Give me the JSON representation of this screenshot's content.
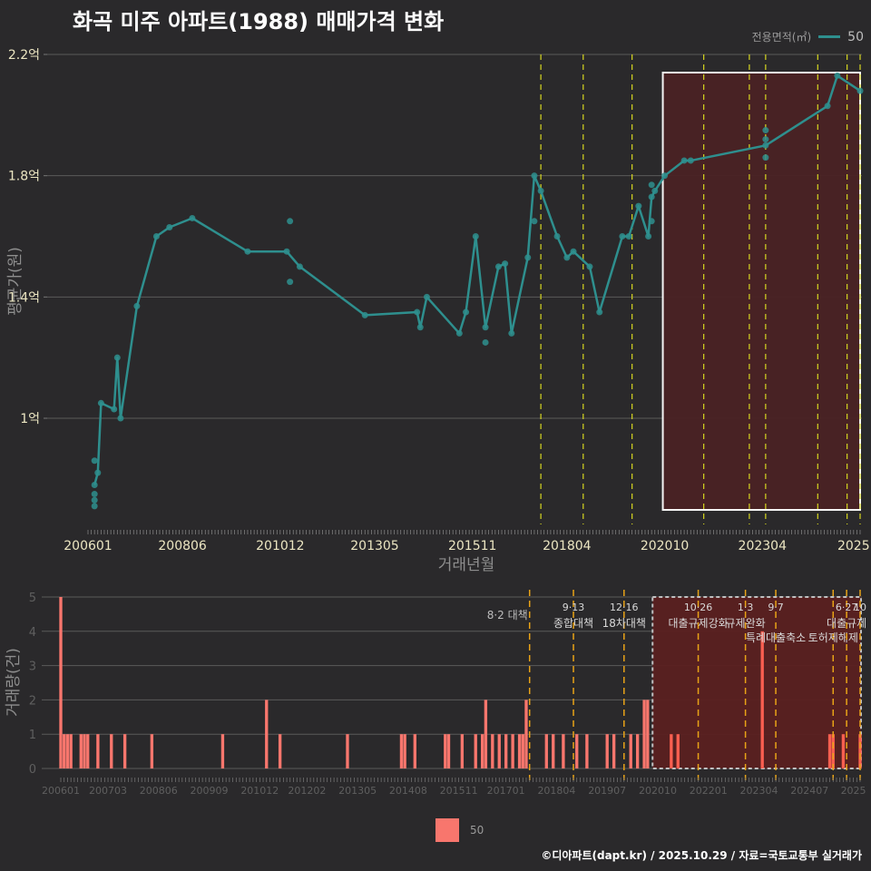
{
  "header": {
    "title": "화곡 미주 아파트(1988) 매매가격 변화"
  },
  "legend_top": {
    "title": "전용면적(㎡)",
    "label": "50",
    "color": "#2e8f8e"
  },
  "legend_bottom": {
    "label": "50",
    "color": "#f8766d"
  },
  "footer": {
    "credit": "©디아파트(dapt.kr) / 2025.10.29 / 자료=국토교통부 실거래가"
  },
  "chart_data": [
    {
      "type": "line",
      "title": "화곡 미주 아파트(1988) 매매가격 변화",
      "xlabel": "거래년월",
      "ylabel": "평균가(원)",
      "y_ticks": [
        "1억",
        "1.4억",
        "1.8억",
        "2.2억"
      ],
      "y_tick_values": [
        1.0,
        1.4,
        1.8,
        2.2
      ],
      "x_ticks": [
        "200601",
        "200806",
        "201012",
        "201305",
        "201511",
        "201804",
        "202010",
        "202304",
        "2025"
      ],
      "ylim": [
        0.7,
        2.2
      ],
      "grid": true,
      "series": [
        {
          "name": "50",
          "unit": "억",
          "points": [
            [
              "2006-03",
              0.78
            ],
            [
              "2006-04",
              0.82
            ],
            [
              "2006-05",
              1.05
            ],
            [
              "2006-09",
              1.03
            ],
            [
              "2006-10",
              1.2
            ],
            [
              "2006-11",
              1.0
            ],
            [
              "2007-04",
              1.37
            ],
            [
              "2007-10",
              1.6
            ],
            [
              "2008-02",
              1.63
            ],
            [
              "2008-09",
              1.66
            ],
            [
              "2010-02",
              1.55
            ],
            [
              "2011-02",
              1.55
            ],
            [
              "2011-06",
              1.5
            ],
            [
              "2013-02",
              1.34
            ],
            [
              "2014-06",
              1.35
            ],
            [
              "2014-07",
              1.3
            ],
            [
              "2014-09",
              1.4
            ],
            [
              "2015-07",
              1.28
            ],
            [
              "2015-09",
              1.35
            ],
            [
              "2015-12",
              1.6
            ],
            [
              "2016-03",
              1.3
            ],
            [
              "2016-07",
              1.5
            ],
            [
              "2016-09",
              1.51
            ],
            [
              "2016-11",
              1.28
            ],
            [
              "2017-04",
              1.53
            ],
            [
              "2017-06",
              1.8
            ],
            [
              "2017-08",
              1.75
            ],
            [
              "2018-01",
              1.6
            ],
            [
              "2018-04",
              1.53
            ],
            [
              "2018-06",
              1.55
            ],
            [
              "2018-11",
              1.5
            ],
            [
              "2019-02",
              1.35
            ],
            [
              "2019-09",
              1.6
            ],
            [
              "2019-11",
              1.6
            ],
            [
              "2020-02",
              1.7
            ],
            [
              "2020-05",
              1.6
            ],
            [
              "2020-06",
              1.73
            ],
            [
              "2020-07",
              1.75
            ],
            [
              "2020-10",
              1.8
            ],
            [
              "2021-04",
              1.85
            ],
            [
              "2021-06",
              1.85
            ],
            [
              "2023-05",
              1.9
            ],
            [
              "2024-12",
              2.03
            ],
            [
              "2025-03",
              2.13
            ],
            [
              "2025-10",
              2.08
            ]
          ],
          "scatter_extra": [
            [
              "2006-03",
              0.75
            ],
            [
              "2006-03",
              0.73
            ],
            [
              "2006-03",
              0.71
            ],
            [
              "2006-03",
              0.86
            ],
            [
              "2011-03",
              1.65
            ],
            [
              "2011-03",
              1.45
            ],
            [
              "2016-03",
              1.25
            ],
            [
              "2017-06",
              1.65
            ],
            [
              "2020-06",
              1.65
            ],
            [
              "2020-06",
              1.77
            ],
            [
              "2023-05",
              1.95
            ],
            [
              "2023-05",
              1.92
            ],
            [
              "2023-05",
              1.86
            ]
          ]
        }
      ],
      "highlight_box": {
        "from": "2020-10",
        "to": "2025-10",
        "color": "#4a2224"
      },
      "policy_lines": [
        "2017-08",
        "2018-09",
        "2019-12",
        "2021-10",
        "2022-12",
        "2023-05",
        "2024-09",
        "2025-06",
        "2025-10"
      ]
    },
    {
      "type": "bar",
      "xlabel": "",
      "ylabel": "거래량(건)",
      "ylim": [
        0,
        5
      ],
      "y_ticks": [
        "0",
        "1",
        "2",
        "3",
        "4",
        "5"
      ],
      "x_ticks": [
        "200601",
        "200703",
        "200806",
        "200909",
        "201012",
        "201202",
        "201305",
        "201408",
        "201511",
        "201701",
        "201804",
        "201907",
        "202010",
        "202201",
        "202304",
        "202407",
        "2025"
      ],
      "series": [
        {
          "name": "50",
          "bars": [
            [
              "2006-01",
              5
            ],
            [
              "2006-02",
              1
            ],
            [
              "2006-03",
              1
            ],
            [
              "2006-04",
              1
            ],
            [
              "2006-07",
              1
            ],
            [
              "2006-08",
              1
            ],
            [
              "2006-09",
              1
            ],
            [
              "2006-12",
              1
            ],
            [
              "2007-04",
              1
            ],
            [
              "2007-08",
              1
            ],
            [
              "2008-04",
              1
            ],
            [
              "2010-01",
              1
            ],
            [
              "2011-02",
              2
            ],
            [
              "2011-06",
              1
            ],
            [
              "2013-02",
              1
            ],
            [
              "2014-06",
              1
            ],
            [
              "2014-07",
              1
            ],
            [
              "2014-10",
              1
            ],
            [
              "2015-07",
              1
            ],
            [
              "2015-08",
              1
            ],
            [
              "2015-12",
              1
            ],
            [
              "2016-04",
              1
            ],
            [
              "2016-06",
              1
            ],
            [
              "2016-07",
              2
            ],
            [
              "2016-09",
              1
            ],
            [
              "2016-11",
              1
            ],
            [
              "2017-01",
              1
            ],
            [
              "2017-03",
              1
            ],
            [
              "2017-05",
              1
            ],
            [
              "2017-06",
              1
            ],
            [
              "2017-07",
              2
            ],
            [
              "2018-01",
              1
            ],
            [
              "2018-03",
              1
            ],
            [
              "2018-06",
              1
            ],
            [
              "2018-10",
              1
            ],
            [
              "2019-01",
              1
            ],
            [
              "2019-07",
              1
            ],
            [
              "2019-09",
              1
            ],
            [
              "2020-02",
              1
            ],
            [
              "2020-04",
              1
            ],
            [
              "2020-06",
              2
            ],
            [
              "2020-07",
              2
            ],
            [
              "2021-02",
              1
            ],
            [
              "2021-04",
              1
            ],
            [
              "2023-05",
              4
            ],
            [
              "2025-01",
              1
            ],
            [
              "2025-02",
              1
            ],
            [
              "2025-05",
              1
            ],
            [
              "2025-10",
              1
            ]
          ]
        }
      ],
      "annotations": [
        {
          "date": "2017-08",
          "label": "8·2 대책"
        },
        {
          "date": "2018-09",
          "label_top": "9·13",
          "label_bottom": "종합대책"
        },
        {
          "date": "2019-12",
          "label_top": "12·16",
          "label_bottom": "18차대책"
        },
        {
          "date": "2021-10",
          "label_top": "10·26",
          "label_bottom": "대출규제강화"
        },
        {
          "date": "2022-12",
          "label_top": "1·3",
          "label_bottom": "규제완화"
        },
        {
          "date": "2023-09",
          "label_top": "9·7",
          "label_bottom": "특례대출축소"
        },
        {
          "date": "2025-02",
          "label_bottom": "토허제해제"
        },
        {
          "date": "2025-06",
          "label_top": "6·27",
          "label_bottom": "대출규제"
        },
        {
          "date": "2025-10",
          "label_top": "10"
        }
      ],
      "highlight_box": {
        "from": "2020-09",
        "to": "2025-10",
        "color": "#5a2020",
        "border": "dashed"
      }
    }
  ]
}
